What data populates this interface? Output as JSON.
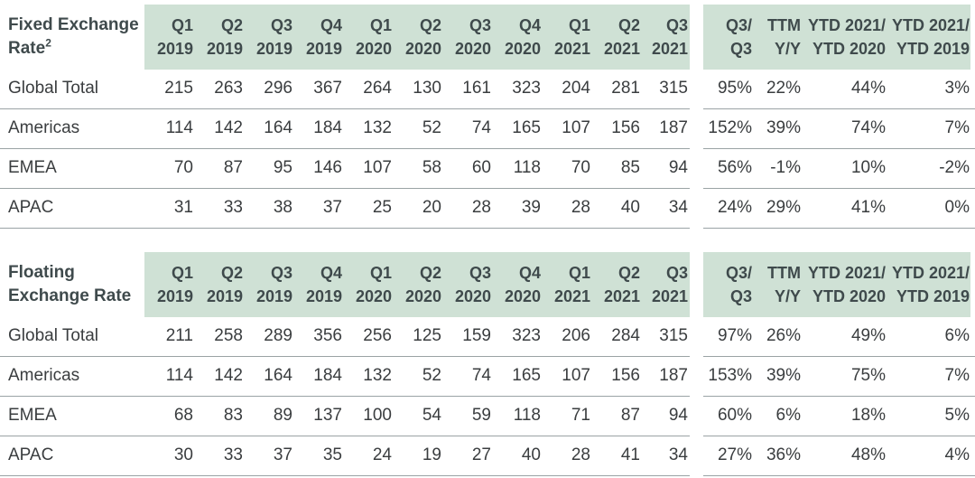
{
  "tables": [
    {
      "title": "Fixed Exchange Rate",
      "title_sup": "2",
      "quarters": [
        [
          "Q1",
          "2019"
        ],
        [
          "Q2",
          "2019"
        ],
        [
          "Q3",
          "2019"
        ],
        [
          "Q4",
          "2019"
        ],
        [
          "Q1",
          "2020"
        ],
        [
          "Q2",
          "2020"
        ],
        [
          "Q3",
          "2020"
        ],
        [
          "Q4",
          "2020"
        ],
        [
          "Q1",
          "2021"
        ],
        [
          "Q2",
          "2021"
        ],
        [
          "Q3",
          "2021"
        ]
      ],
      "changes": [
        [
          "Q3/",
          "Q3"
        ],
        [
          "TTM",
          "Y/Y"
        ],
        [
          "YTD 2021/",
          "YTD 2020"
        ],
        [
          "YTD 2021/",
          "YTD 2019"
        ]
      ],
      "rows": [
        {
          "label": "Global Total",
          "values": [
            "215",
            "263",
            "296",
            "367",
            "264",
            "130",
            "161",
            "323",
            "204",
            "281",
            "315"
          ],
          "changes": [
            "95%",
            "22%",
            "44%",
            "3%"
          ]
        },
        {
          "label": "Americas",
          "values": [
            "114",
            "142",
            "164",
            "184",
            "132",
            "52",
            "74",
            "165",
            "107",
            "156",
            "187"
          ],
          "changes": [
            "152%",
            "39%",
            "74%",
            "7%"
          ]
        },
        {
          "label": "EMEA",
          "values": [
            "70",
            "87",
            "95",
            "146",
            "107",
            "58",
            "60",
            "118",
            "70",
            "85",
            "94"
          ],
          "changes": [
            "56%",
            "-1%",
            "10%",
            "-2%"
          ]
        },
        {
          "label": "APAC",
          "values": [
            "31",
            "33",
            "38",
            "37",
            "25",
            "20",
            "28",
            "39",
            "28",
            "40",
            "34"
          ],
          "changes": [
            "24%",
            "29%",
            "41%",
            "0%"
          ]
        }
      ]
    },
    {
      "title": "Floating Exchange Rate",
      "title_sup": "",
      "quarters": [
        [
          "Q1",
          "2019"
        ],
        [
          "Q2",
          "2019"
        ],
        [
          "Q3",
          "2019"
        ],
        [
          "Q4",
          "2019"
        ],
        [
          "Q1",
          "2020"
        ],
        [
          "Q2",
          "2020"
        ],
        [
          "Q3",
          "2020"
        ],
        [
          "Q4",
          "2020"
        ],
        [
          "Q1",
          "2021"
        ],
        [
          "Q2",
          "2021"
        ],
        [
          "Q3",
          "2021"
        ]
      ],
      "changes": [
        [
          "Q3/",
          "Q3"
        ],
        [
          "TTM",
          "Y/Y"
        ],
        [
          "YTD 2021/",
          "YTD 2020"
        ],
        [
          "YTD 2021/",
          "YTD 2019"
        ]
      ],
      "rows": [
        {
          "label": "Global Total",
          "values": [
            "211",
            "258",
            "289",
            "356",
            "256",
            "125",
            "159",
            "323",
            "206",
            "284",
            "315"
          ],
          "changes": [
            "97%",
            "26%",
            "49%",
            "6%"
          ]
        },
        {
          "label": "Americas",
          "values": [
            "114",
            "142",
            "164",
            "184",
            "132",
            "52",
            "74",
            "165",
            "107",
            "156",
            "187"
          ],
          "changes": [
            "153%",
            "39%",
            "75%",
            "7%"
          ]
        },
        {
          "label": "EMEA",
          "values": [
            "68",
            "83",
            "89",
            "137",
            "100",
            "54",
            "59",
            "118",
            "71",
            "87",
            "94"
          ],
          "changes": [
            "60%",
            "6%",
            "18%",
            "5%"
          ]
        },
        {
          "label": "APAC",
          "values": [
            "30",
            "33",
            "37",
            "35",
            "24",
            "19",
            "27",
            "40",
            "28",
            "41",
            "34"
          ],
          "changes": [
            "27%",
            "36%",
            "48%",
            "4%"
          ]
        }
      ]
    }
  ]
}
